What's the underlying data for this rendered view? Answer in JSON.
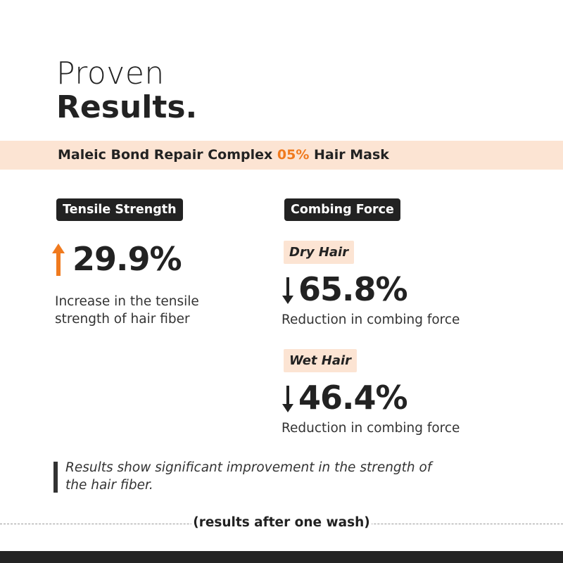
{
  "heading": {
    "line1": "Proven",
    "line2": "Results."
  },
  "product": {
    "before": "Maleic Bond Repair Complex ",
    "highlight": "05%",
    "after": " Hair Mask"
  },
  "tensile": {
    "label": "Tensile Strength",
    "value": "29.9%",
    "direction": "up",
    "description_line1": "Increase in the tensile",
    "description_line2": "strength of hair fiber"
  },
  "combing": {
    "label": "Combing Force",
    "dry": {
      "label": "Dry Hair",
      "value": "65.8%",
      "direction": "down",
      "description": "Reduction in combing force"
    },
    "wet": {
      "label": "Wet Hair",
      "value": "46.4%",
      "direction": "down",
      "description": "Reduction in combing force"
    }
  },
  "quote": {
    "line1": "Results show significant improvement in the strength of",
    "line2": "the hair fiber."
  },
  "footnote": "(results after one wash)",
  "colors": {
    "accent": "#f07a1e",
    "band": "#fce4d3",
    "dark": "#222222"
  }
}
